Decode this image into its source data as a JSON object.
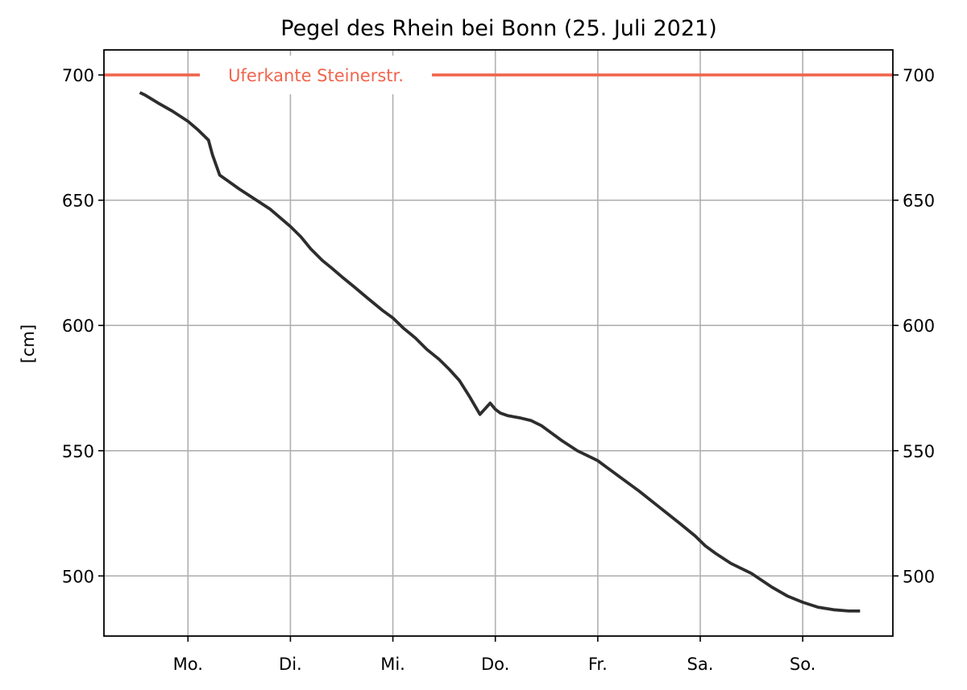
{
  "chart_data": {
    "type": "line",
    "title": "Pegel des Rhein bei Bonn (25. Juli 2021)",
    "ylabel": "[cm]",
    "xlabel": "",
    "ylim": [
      476,
      710
    ],
    "xlim": [
      -0.82,
      6.88
    ],
    "yticks": [
      500,
      550,
      600,
      650,
      700
    ],
    "yticks_right": true,
    "grid": true,
    "xtick_labels": [
      "Mo.",
      "Di.",
      "Mi.",
      "Do.",
      "Fr.",
      "Sa.",
      "So."
    ],
    "reference_line": {
      "label": "Uferkante Steinerstr.",
      "value": 700,
      "color": "#f0654d"
    },
    "series": [
      {
        "color": "#2d2d2d",
        "x": [
          -0.47,
          -0.42,
          -0.3,
          -0.15,
          0.0,
          0.1,
          0.2,
          0.24,
          0.31,
          0.38,
          0.5,
          0.65,
          0.8,
          0.9,
          1.0,
          1.1,
          1.2,
          1.31,
          1.4,
          1.5,
          1.62,
          1.75,
          1.9,
          2.0,
          2.1,
          2.22,
          2.33,
          2.45,
          2.55,
          2.65,
          2.75,
          2.85,
          2.95,
          3.0,
          3.05,
          3.12,
          3.25,
          3.35,
          3.45,
          3.55,
          3.65,
          3.8,
          3.95,
          4.0,
          4.1,
          4.25,
          4.4,
          4.6,
          4.8,
          4.95,
          5.05,
          5.15,
          5.3,
          5.5,
          5.7,
          5.85,
          6.0,
          6.15,
          6.3,
          6.45,
          6.52,
          6.56
        ],
        "y": [
          693,
          692,
          689,
          685.5,
          681.5,
          678,
          674,
          668,
          660,
          658,
          654.5,
          650.5,
          646.5,
          643,
          639.5,
          635.5,
          630.5,
          626,
          623,
          619.5,
          615.5,
          611,
          606,
          603,
          599,
          595,
          590.5,
          586.5,
          582.5,
          578,
          571.5,
          564.5,
          569,
          566.5,
          565,
          564,
          563,
          562,
          560,
          557,
          554,
          550,
          547,
          546,
          543,
          538.5,
          534,
          527.5,
          521,
          516,
          512,
          509,
          505,
          501,
          495.5,
          492,
          489.5,
          487.5,
          486.5,
          486,
          486,
          486
        ]
      }
    ]
  }
}
